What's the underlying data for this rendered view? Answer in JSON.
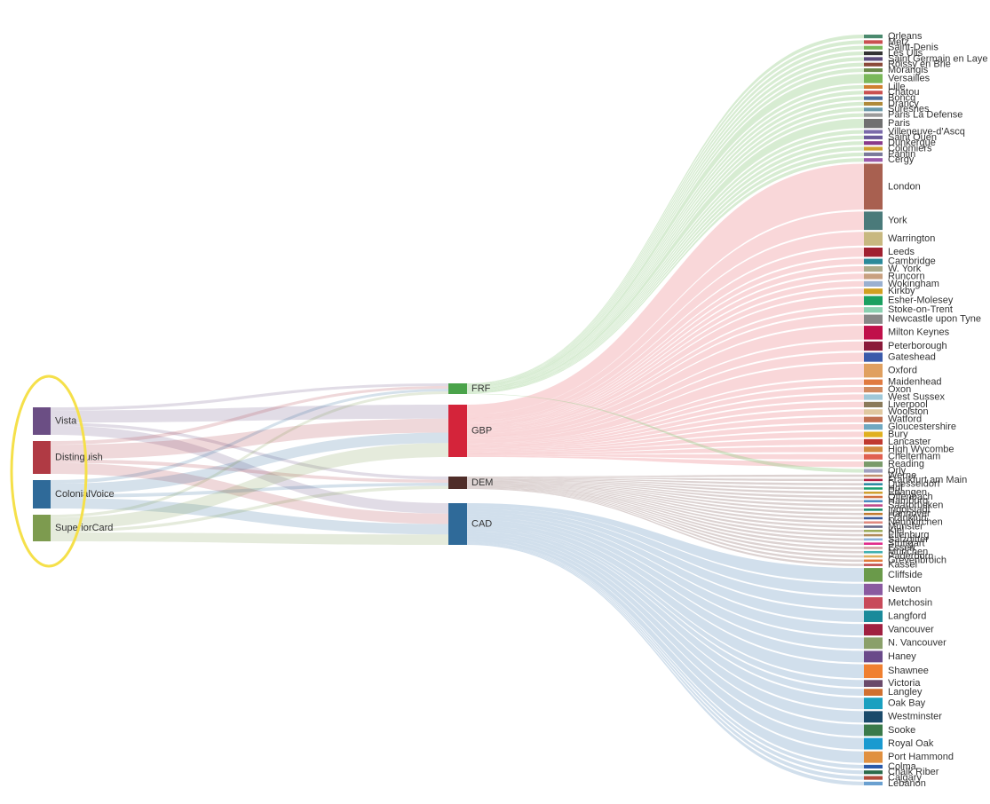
{
  "chart_data": {
    "type": "sankey",
    "highlight": {
      "shape": "ellipse",
      "color": "#f5e04a",
      "encloses": "sources"
    },
    "sources": [
      {
        "name": "Vista",
        "color": "#6b4e84"
      },
      {
        "name": "Distinguish",
        "color": "#b03a44"
      },
      {
        "name": "ColonialVoice",
        "color": "#2f6a99"
      },
      {
        "name": "SuperiorCard",
        "color": "#7d9b4f"
      }
    ],
    "currencies": [
      {
        "name": "FRF",
        "color": "#4aa34a",
        "link_color": "#9bd08f"
      },
      {
        "name": "GBP",
        "color": "#d4243a",
        "link_color": "#ef9a9f"
      },
      {
        "name": "DEM",
        "color": "#4f2d29",
        "link_color": "#a88f8b"
      },
      {
        "name": "CAD",
        "color": "#2f6a99",
        "link_color": "#8cb0d0"
      }
    ],
    "source_to_currency": [
      {
        "source": "Vista",
        "currency": "FRF",
        "value": 1
      },
      {
        "source": "Vista",
        "currency": "GBP",
        "value": 4
      },
      {
        "source": "Vista",
        "currency": "DEM",
        "value": 1
      },
      {
        "source": "Vista",
        "currency": "CAD",
        "value": 3
      },
      {
        "source": "Distinguish",
        "currency": "FRF",
        "value": 1
      },
      {
        "source": "Distinguish",
        "currency": "GBP",
        "value": 4
      },
      {
        "source": "Distinguish",
        "currency": "DEM",
        "value": 1
      },
      {
        "source": "Distinguish",
        "currency": "CAD",
        "value": 3
      },
      {
        "source": "ColonialVoice",
        "currency": "FRF",
        "value": 1
      },
      {
        "source": "ColonialVoice",
        "currency": "GBP",
        "value": 3
      },
      {
        "source": "ColonialVoice",
        "currency": "DEM",
        "value": 1
      },
      {
        "source": "ColonialVoice",
        "currency": "CAD",
        "value": 3
      },
      {
        "source": "SuperiorCard",
        "currency": "FRF",
        "value": 1
      },
      {
        "source": "SuperiorCard",
        "currency": "GBP",
        "value": 4
      },
      {
        "source": "SuperiorCard",
        "currency": "DEM",
        "value": 1
      },
      {
        "source": "SuperiorCard",
        "currency": "CAD",
        "value": 3
      }
    ],
    "destinations": [
      {
        "name": "Orleans",
        "currency": "FRF",
        "value": 0.08,
        "color": "#4a8a6e"
      },
      {
        "name": "Metz",
        "currency": "FRF",
        "value": 0.08,
        "color": "#c95050"
      },
      {
        "name": "Saint-Denis",
        "currency": "FRF",
        "value": 0.08,
        "color": "#7ab85a"
      },
      {
        "name": "Les Ulis",
        "currency": "FRF",
        "value": 0.08,
        "color": "#333333"
      },
      {
        "name": "Saint Germain en Laye",
        "currency": "FRF",
        "value": 0.08,
        "color": "#5a4a7a"
      },
      {
        "name": "Roissy en Brie",
        "currency": "FRF",
        "value": 0.08,
        "color": "#8a4a3a"
      },
      {
        "name": "Morangis",
        "currency": "FRF",
        "value": 0.08,
        "color": "#6a8a4a"
      },
      {
        "name": "Versailles",
        "currency": "FRF",
        "value": 0.2,
        "color": "#7ab85a"
      },
      {
        "name": "Lille",
        "currency": "FRF",
        "value": 0.08,
        "color": "#d08030"
      },
      {
        "name": "Chatou",
        "currency": "FRF",
        "value": 0.08,
        "color": "#c95050"
      },
      {
        "name": "Boncq",
        "currency": "FRF",
        "value": 0.08,
        "color": "#4a6a9a"
      },
      {
        "name": "Drancy",
        "currency": "FRF",
        "value": 0.08,
        "color": "#b08a3a"
      },
      {
        "name": "Suresnes",
        "currency": "FRF",
        "value": 0.08,
        "color": "#6a9aaa"
      },
      {
        "name": "Paris La Defense",
        "currency": "FRF",
        "value": 0.08,
        "color": "#9a9a9a"
      },
      {
        "name": "Paris",
        "currency": "FRF",
        "value": 0.2,
        "color": "#707070"
      },
      {
        "name": "Villeneuve-d'Ascq",
        "currency": "FRF",
        "value": 0.08,
        "color": "#7a6aaa"
      },
      {
        "name": "Saint Ouen",
        "currency": "FRF",
        "value": 0.08,
        "color": "#6a5a9a"
      },
      {
        "name": "Dunkerque",
        "currency": "FRF",
        "value": 0.08,
        "color": "#8a3a8a"
      },
      {
        "name": "Colomiers",
        "currency": "FRF",
        "value": 0.08,
        "color": "#d0a030"
      },
      {
        "name": "Pantin",
        "currency": "FRF",
        "value": 0.08,
        "color": "#7a7a9a"
      },
      {
        "name": "Cergy",
        "currency": "FRF",
        "value": 0.08,
        "color": "#9a5aaa"
      },
      {
        "name": "London",
        "currency": "GBP",
        "value": 1.0,
        "color": "#a86050"
      },
      {
        "name": "York",
        "currency": "GBP",
        "value": 0.4,
        "color": "#4a7a7a"
      },
      {
        "name": "Warrington",
        "currency": "GBP",
        "value": 0.3,
        "color": "#c8b880"
      },
      {
        "name": "Leeds",
        "currency": "GBP",
        "value": 0.2,
        "color": "#a02030"
      },
      {
        "name": "Cambridge",
        "currency": "GBP",
        "value": 0.12,
        "color": "#2a8a9a"
      },
      {
        "name": "W. York",
        "currency": "GBP",
        "value": 0.12,
        "color": "#aaaa8a"
      },
      {
        "name": "Runcorn",
        "currency": "GBP",
        "value": 0.12,
        "color": "#c8a080"
      },
      {
        "name": "Wokingham",
        "currency": "GBP",
        "value": 0.12,
        "color": "#9ab0d0"
      },
      {
        "name": "Kirkby",
        "currency": "GBP",
        "value": 0.12,
        "color": "#d0a020"
      },
      {
        "name": "Esher-Molesey",
        "currency": "GBP",
        "value": 0.2,
        "color": "#1aa060"
      },
      {
        "name": "Stoke-on-Trent",
        "currency": "GBP",
        "value": 0.12,
        "color": "#8ad0b0"
      },
      {
        "name": "Newcastle upon Tyne",
        "currency": "GBP",
        "value": 0.2,
        "color": "#888888"
      },
      {
        "name": "Milton Keynes",
        "currency": "GBP",
        "value": 0.3,
        "color": "#c0104a"
      },
      {
        "name": "Peterborough",
        "currency": "GBP",
        "value": 0.2,
        "color": "#8a1a3a"
      },
      {
        "name": "Gateshead",
        "currency": "GBP",
        "value": 0.2,
        "color": "#3a5aaa"
      },
      {
        "name": "Oxford",
        "currency": "GBP",
        "value": 0.3,
        "color": "#e0a060"
      },
      {
        "name": "Maidenhead",
        "currency": "GBP",
        "value": 0.12,
        "color": "#e07a40"
      },
      {
        "name": "Oxon",
        "currency": "GBP",
        "value": 0.12,
        "color": "#d08a60"
      },
      {
        "name": "West Sussex",
        "currency": "GBP",
        "value": 0.12,
        "color": "#a0c8d8"
      },
      {
        "name": "Liverpool",
        "currency": "GBP",
        "value": 0.12,
        "color": "#8a7a5a"
      },
      {
        "name": "Woolston",
        "currency": "GBP",
        "value": 0.12,
        "color": "#e0c8a0"
      },
      {
        "name": "Watford",
        "currency": "GBP",
        "value": 0.12,
        "color": "#c07050"
      },
      {
        "name": "Gloucestershire",
        "currency": "GBP",
        "value": 0.12,
        "color": "#70a8c0"
      },
      {
        "name": "Bury",
        "currency": "GBP",
        "value": 0.12,
        "color": "#e0b020"
      },
      {
        "name": "Lancaster",
        "currency": "GBP",
        "value": 0.12,
        "color": "#c03a30"
      },
      {
        "name": "High Wycombe",
        "currency": "GBP",
        "value": 0.12,
        "color": "#d08a40"
      },
      {
        "name": "Cheltenham",
        "currency": "GBP",
        "value": 0.12,
        "color": "#e06050"
      },
      {
        "name": "Reading",
        "currency": "GBP",
        "value": 0.12,
        "color": "#7a9a6a"
      },
      {
        "name": "Orly",
        "currency": "FRF",
        "value": 0.08,
        "color": "#a0a0c0"
      },
      {
        "name": "Werne",
        "currency": "DEM",
        "value": 0.05,
        "color": "#c09070"
      },
      {
        "name": "Frankfurt am Main",
        "currency": "DEM",
        "value": 0.05,
        "color": "#b02040"
      },
      {
        "name": "Duesseldorf",
        "currency": "DEM",
        "value": 0.05,
        "color": "#2a8aa0"
      },
      {
        "name": "Hof",
        "currency": "DEM",
        "value": 0.05,
        "color": "#1aa070"
      },
      {
        "name": "Erlangen",
        "currency": "DEM",
        "value": 0.05,
        "color": "#d0a030"
      },
      {
        "name": "Offenbach",
        "currency": "DEM",
        "value": 0.05,
        "color": "#d07040"
      },
      {
        "name": "Hamburg",
        "currency": "DEM",
        "value": 0.05,
        "color": "#4a8ac0"
      },
      {
        "name": "Saarbrücken",
        "currency": "DEM",
        "value": 0.05,
        "color": "#c04a8a"
      },
      {
        "name": "Ingolstadt",
        "currency": "DEM",
        "value": 0.05,
        "color": "#1a8a6a"
      },
      {
        "name": "Hannover",
        "currency": "DEM",
        "value": 0.05,
        "color": "#c07a30"
      },
      {
        "name": "Frankfurt",
        "currency": "DEM",
        "value": 0.05,
        "color": "#3a5a9a"
      },
      {
        "name": "Neunkirchen",
        "currency": "DEM",
        "value": 0.05,
        "color": "#e08a80"
      },
      {
        "name": "Münster",
        "currency": "DEM",
        "value": 0.05,
        "color": "#6a6a8a"
      },
      {
        "name": "Kiel",
        "currency": "DEM",
        "value": 0.05,
        "color": "#9aaa5a"
      },
      {
        "name": "Eilenburg",
        "currency": "DEM",
        "value": 0.05,
        "color": "#b08a5a"
      },
      {
        "name": "Salzgitter",
        "currency": "DEM",
        "value": 0.05,
        "color": "#8ab0d8"
      },
      {
        "name": "Stuttgart",
        "currency": "DEM",
        "value": 0.05,
        "color": "#e02a8a"
      },
      {
        "name": "Essen",
        "currency": "DEM",
        "value": 0.05,
        "color": "#d0a0a0"
      },
      {
        "name": "München",
        "currency": "DEM",
        "value": 0.05,
        "color": "#40b0b0"
      },
      {
        "name": "Paderborn",
        "currency": "DEM",
        "value": 0.05,
        "color": "#e0b060"
      },
      {
        "name": "Grevenbroich",
        "currency": "DEM",
        "value": 0.05,
        "color": "#e07a3a"
      },
      {
        "name": "Kassel",
        "currency": "DEM",
        "value": 0.05,
        "color": "#c04a4a"
      },
      {
        "name": "Cliffside",
        "currency": "CAD",
        "value": 0.3,
        "color": "#6a9a4a"
      },
      {
        "name": "Newton",
        "currency": "CAD",
        "value": 0.25,
        "color": "#8a5aa0"
      },
      {
        "name": "Metchosin",
        "currency": "CAD",
        "value": 0.25,
        "color": "#c84a5a"
      },
      {
        "name": "Langford",
        "currency": "CAD",
        "value": 0.25,
        "color": "#1a8a9a"
      },
      {
        "name": "Vancouver",
        "currency": "CAD",
        "value": 0.25,
        "color": "#a02040"
      },
      {
        "name": "N. Vancouver",
        "currency": "CAD",
        "value": 0.25,
        "color": "#8aa06a"
      },
      {
        "name": "Haney",
        "currency": "CAD",
        "value": 0.25,
        "color": "#6a4a8a"
      },
      {
        "name": "Shawnee",
        "currency": "CAD",
        "value": 0.3,
        "color": "#f08030"
      },
      {
        "name": "Victoria",
        "currency": "CAD",
        "value": 0.15,
        "color": "#6a4a6a"
      },
      {
        "name": "Langley",
        "currency": "CAD",
        "value": 0.15,
        "color": "#d07030"
      },
      {
        "name": "Oak Bay",
        "currency": "CAD",
        "value": 0.25,
        "color": "#1aa0c0"
      },
      {
        "name": "Westminster",
        "currency": "CAD",
        "value": 0.25,
        "color": "#1a4a6a"
      },
      {
        "name": "Sooke",
        "currency": "CAD",
        "value": 0.25,
        "color": "#3a7a4a"
      },
      {
        "name": "Royal Oak",
        "currency": "CAD",
        "value": 0.25,
        "color": "#1a9ad0"
      },
      {
        "name": "Port Hammond",
        "currency": "CAD",
        "value": 0.25,
        "color": "#e09040"
      },
      {
        "name": "Colma",
        "currency": "CAD",
        "value": 0.08,
        "color": "#2a5aaa"
      },
      {
        "name": "Chalk Riber",
        "currency": "CAD",
        "value": 0.08,
        "color": "#2a6a4a"
      },
      {
        "name": "Calgary",
        "currency": "CAD",
        "value": 0.08,
        "color": "#b04a3a"
      },
      {
        "name": "Lebanon",
        "currency": "CAD",
        "value": 0.08,
        "color": "#6aa0d0"
      }
    ]
  }
}
